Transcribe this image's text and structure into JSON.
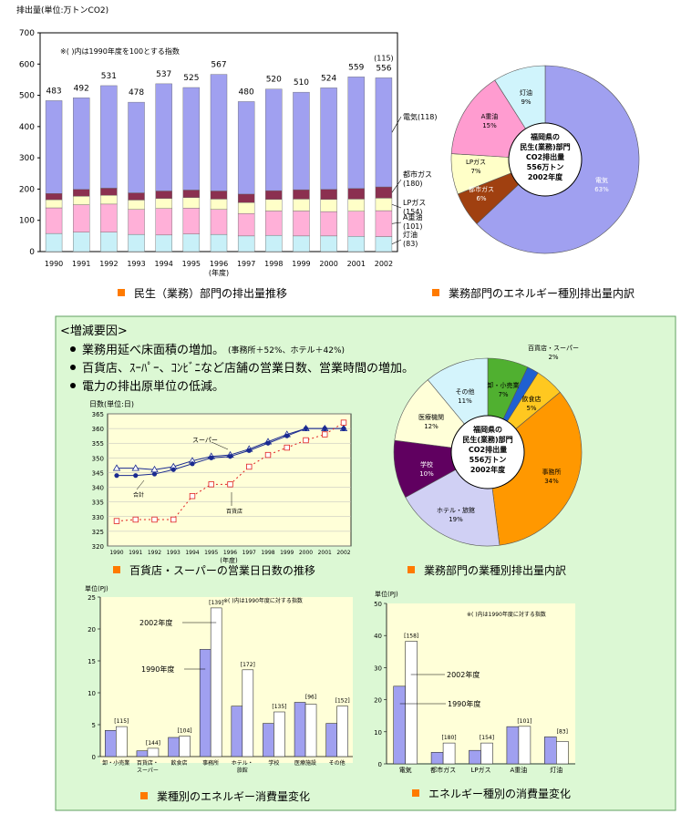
{
  "top": {
    "stack_chart": {
      "type": "bar",
      "ylabel": "排出量(単位:万トンCO2)",
      "note": "※(  )内は1990年度を100とする指数",
      "xlabel": "(年度)",
      "caption": "民生（業務）部門の排出量推移",
      "ylim": [
        0,
        700
      ],
      "yticks": [
        0,
        100,
        200,
        300,
        400,
        500,
        600,
        700
      ],
      "categories": [
        "1990",
        "1991",
        "1992",
        "1993",
        "1994",
        "1995",
        "1996",
        "1997",
        "1998",
        "1999",
        "2000",
        "2001",
        "2002"
      ],
      "totals": [
        483,
        492,
        531,
        478,
        537,
        525,
        567,
        480,
        520,
        510,
        524,
        559,
        556
      ],
      "total_note_2002": "(115)",
      "series": [
        {
          "name": "灯油(83)",
          "color": "#c8f0f8",
          "values": [
            58,
            62,
            62,
            55,
            53,
            56,
            55,
            50,
            52,
            50,
            50,
            49,
            48
          ]
        },
        {
          "name": "A重油(101)",
          "color": "#ffb0d8",
          "values": [
            82,
            88,
            90,
            80,
            85,
            83,
            80,
            72,
            78,
            80,
            78,
            80,
            83
          ]
        },
        {
          "name": "LPガス(154)",
          "color": "#ffffc8",
          "values": [
            26,
            27,
            28,
            30,
            32,
            34,
            33,
            35,
            37,
            38,
            39,
            39,
            40
          ]
        },
        {
          "name": "都市ガス(180)",
          "color": "#8b3050",
          "values": [
            20,
            22,
            23,
            23,
            24,
            24,
            26,
            27,
            28,
            30,
            32,
            34,
            36
          ]
        },
        {
          "name": "電気(118)",
          "color": "#a0a0f0",
          "values": [
            297,
            293,
            328,
            290,
            343,
            328,
            373,
            296,
            325,
            312,
            325,
            357,
            349
          ]
        }
      ]
    },
    "energy_pie": {
      "type": "pie",
      "caption": "業務部門のエネルギー種別排出量内訳",
      "center_lines": [
        "福岡県の",
        "民生(業務)部門",
        "CO2排出量",
        "556万トン",
        "2002年度"
      ],
      "slices": [
        {
          "label": "電気",
          "pct": "63%",
          "value": 63,
          "color": "#a0a0f0"
        },
        {
          "label": "都市ガス",
          "pct": "6%",
          "value": 6,
          "color": "#a04010"
        },
        {
          "label": "LPガス",
          "pct": "7%",
          "value": 7,
          "color": "#ffffc8"
        },
        {
          "label": "A重油",
          "pct": "15%",
          "value": 15,
          "color": "#ff9cd0"
        },
        {
          "label": "灯油",
          "pct": "9%",
          "value": 9,
          "color": "#d0f4fc"
        }
      ]
    }
  },
  "factors": {
    "title": "<増減要因>",
    "items": [
      {
        "text": "業務用延べ床面積の増加。",
        "small": "(事務所＋52%、ホテル＋42%)"
      },
      {
        "text": "百貨店、ｽｰﾊﾟｰ、ｺﾝﾋﾞﾆなど店舗の営業日数、営業時間の増加。",
        "small": ""
      },
      {
        "text": "電力の排出原単位の低減。",
        "small": ""
      }
    ]
  },
  "days_chart": {
    "type": "line",
    "ylabel": "日数(単位:日)",
    "xlabel": "(年度)",
    "caption": "百貨店・スーパーの営業日日数の推移",
    "ylim": [
      320,
      365
    ],
    "yticks": [
      320,
      325,
      330,
      335,
      340,
      345,
      350,
      355,
      360,
      365
    ],
    "x": [
      "1990",
      "1991",
      "1992",
      "1993",
      "1994",
      "1995",
      "1996",
      "1997",
      "1998",
      "1999",
      "2000",
      "2001",
      "2002"
    ],
    "series": [
      {
        "name": "スーパー",
        "values": [
          346.5,
          346.5,
          346.0,
          347.0,
          349.0,
          350.5,
          351.0,
          353.0,
          355.5,
          358.0,
          360.0,
          360.0,
          360.0
        ]
      },
      {
        "name": "合計",
        "values": [
          344.0,
          344.0,
          344.5,
          346.0,
          348.0,
          350.0,
          350.5,
          352.5,
          355.0,
          357.5,
          360.0,
          360.0,
          360.0
        ]
      },
      {
        "name": "百貨店",
        "values": [
          328.5,
          329.0,
          329.0,
          329.0,
          337.0,
          341.0,
          341.0,
          347.0,
          351.0,
          353.5,
          356.0,
          358.0,
          362.0
        ]
      }
    ]
  },
  "industry_pie": {
    "type": "pie",
    "caption": "業務部門の業種別排出量内訳",
    "center_lines": [
      "福岡県の",
      "民生(業務)部門",
      "CO2排出量",
      "556万トン",
      "2002年度"
    ],
    "slices": [
      {
        "label": "卸・小売業",
        "pct": "7%",
        "value": 7,
        "color": "#50b030"
      },
      {
        "label": "百貨店・スーパー",
        "pct": "2%",
        "value": 2,
        "color": "#2060d0"
      },
      {
        "label": "飲食店",
        "pct": "5%",
        "value": 5,
        "color": "#ffc820"
      },
      {
        "label": "事務所",
        "pct": "34%",
        "value": 34,
        "color": "#ff9800"
      },
      {
        "label": "ホテル・旅館",
        "pct": "19%",
        "value": 19,
        "color": "#d0d0f4"
      },
      {
        "label": "学校",
        "pct": "10%",
        "value": 10,
        "color": "#600060"
      },
      {
        "label": "医療機関",
        "pct": "12%",
        "value": 12,
        "color": "#ffffd8"
      },
      {
        "label": "その他",
        "pct": "11%",
        "value": 11,
        "color": "#d4f4fc"
      }
    ]
  },
  "industry_bars": {
    "type": "bar",
    "ylabel": "単位(PJ)",
    "note": "※(  )内は1990年度に対する指数",
    "caption": "業種別のエネルギー消費量変化",
    "ylim": [
      0,
      25
    ],
    "yticks": [
      0,
      5,
      10,
      15,
      20,
      25
    ],
    "categories": [
      "卸・小売業",
      "百貨店・\nスーパー",
      "飲食店",
      "事務所",
      "ホテル・\n旅館",
      "学校",
      "医療施設",
      "その他"
    ],
    "index_labels": [
      "[115]",
      "[144]",
      "[104]",
      "[139]",
      "[172]",
      "[135]",
      "[96]",
      "[152]"
    ],
    "series": [
      {
        "name": "1990年度",
        "color": "#a0a0f0",
        "values": [
          4.1,
          0.9,
          3.0,
          16.8,
          7.9,
          5.2,
          8.5,
          5.2
        ]
      },
      {
        "name": "2002年度",
        "color": "#ffffff",
        "values": [
          4.7,
          1.3,
          3.2,
          23.3,
          13.6,
          7.0,
          8.2,
          7.9
        ]
      }
    ],
    "callouts": [
      "2002年度",
      "1990年度"
    ]
  },
  "energy_bars": {
    "type": "bar",
    "ylabel": "単位(PJ)",
    "note": "※(  )内は1990年度に対する指数",
    "caption": "エネルギー種別の消費量変化",
    "ylim": [
      0,
      50
    ],
    "yticks": [
      0,
      10,
      20,
      30,
      40,
      50
    ],
    "categories": [
      "電気",
      "都市ガス",
      "LPガス",
      "A重油",
      "灯油"
    ],
    "index_labels": [
      "[158]",
      "[180]",
      "[154]",
      "[101]",
      "[83]"
    ],
    "series": [
      {
        "name": "1990年度",
        "color": "#a0a0f0",
        "values": [
          24.2,
          3.6,
          4.2,
          11.6,
          8.4
        ]
      },
      {
        "name": "2002年度",
        "color": "#ffffff",
        "values": [
          38.2,
          6.5,
          6.5,
          11.7,
          7.0
        ]
      }
    ],
    "callouts": [
      "2002年度",
      "1990年度"
    ]
  }
}
